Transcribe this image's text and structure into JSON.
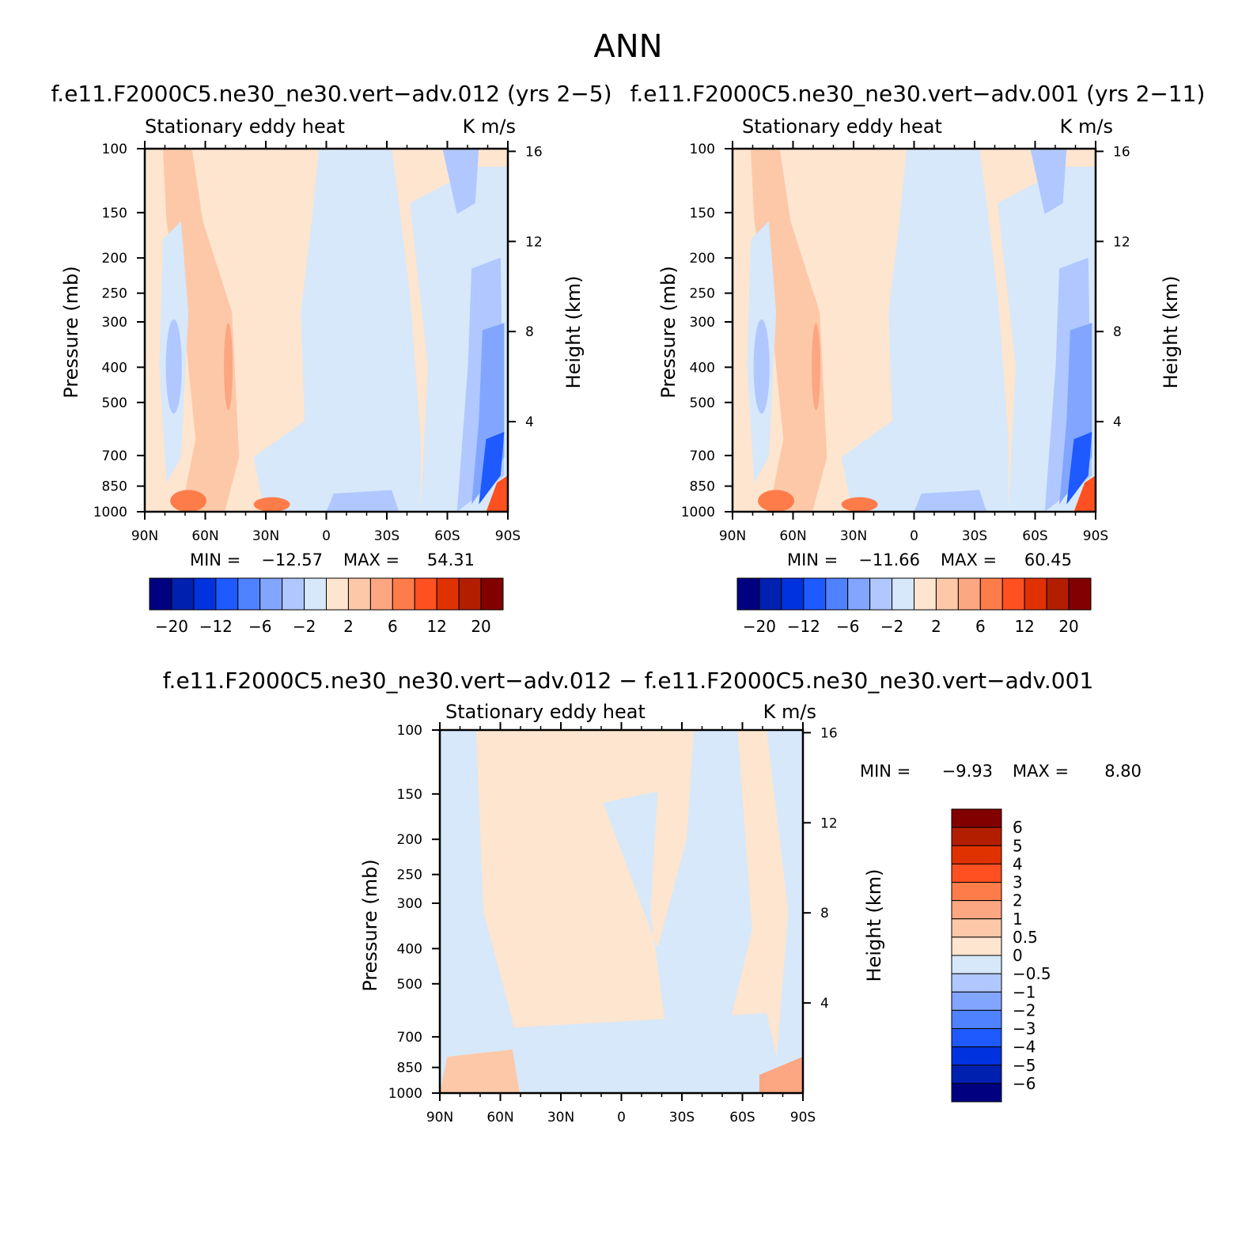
{
  "figure": {
    "title": "ANN"
  },
  "chart_data": [
    {
      "type": "heatmap",
      "case_title": "f.e11.F2000C5.ne30_ne30.vert−adv.012 (yrs 2−5)",
      "left_string": "Stationary eddy heat",
      "right_string": "K m/s",
      "xlabel": "",
      "ylabel": "Pressure (mb)",
      "y2label": "Height (km)",
      "x_ticks": [
        "90N",
        "60N",
        "30N",
        "0",
        "30S",
        "60S",
        "90S"
      ],
      "y_ticks": [
        100,
        150,
        200,
        250,
        300,
        400,
        500,
        700,
        850,
        1000
      ],
      "y2_ticks": [
        16,
        12,
        8,
        4
      ],
      "ylim": [
        1000,
        100
      ],
      "y_scale": "log",
      "min_label": "MIN =",
      "min_value": "−12.57",
      "max_label": "MAX =",
      "max_value": "54.31",
      "colorbar": {
        "orientation": "horizontal",
        "labels": [
          "−20",
          "−12",
          "−6",
          "−2",
          "2",
          "6",
          "12",
          "20"
        ]
      }
    },
    {
      "type": "heatmap",
      "case_title": "f.e11.F2000C5.ne30_ne30.vert−adv.001 (yrs 2−11)",
      "left_string": "Stationary eddy heat",
      "right_string": "K m/s",
      "xlabel": "",
      "ylabel": "Pressure (mb)",
      "y2label": "Height (km)",
      "x_ticks": [
        "90N",
        "60N",
        "30N",
        "0",
        "30S",
        "60S",
        "90S"
      ],
      "y_ticks": [
        100,
        150,
        200,
        250,
        300,
        400,
        500,
        700,
        850,
        1000
      ],
      "y2_ticks": [
        16,
        12,
        8,
        4
      ],
      "ylim": [
        1000,
        100
      ],
      "y_scale": "log",
      "min_label": "MIN =",
      "min_value": "−11.66",
      "max_label": "MAX =",
      "max_value": "60.45",
      "colorbar": {
        "orientation": "horizontal",
        "labels": [
          "−20",
          "−12",
          "−6",
          "−2",
          "2",
          "6",
          "12",
          "20"
        ]
      }
    },
    {
      "type": "heatmap",
      "case_title": "f.e11.F2000C5.ne30_ne30.vert−adv.012 − f.e11.F2000C5.ne30_ne30.vert−adv.001",
      "left_string": "Stationary eddy heat",
      "right_string": "K m/s",
      "xlabel": "",
      "ylabel": "Pressure (mb)",
      "y2label": "Height (km)",
      "x_ticks": [
        "90N",
        "60N",
        "30N",
        "0",
        "30S",
        "60S",
        "90S"
      ],
      "y_ticks": [
        100,
        150,
        200,
        250,
        300,
        400,
        500,
        700,
        850,
        1000
      ],
      "y2_ticks": [
        16,
        12,
        8,
        4
      ],
      "ylim": [
        1000,
        100
      ],
      "y_scale": "log",
      "min_label": "MIN =",
      "min_value": "−9.93",
      "max_label": "MAX =",
      "max_value": "8.80",
      "colorbar": {
        "orientation": "vertical",
        "labels": [
          "6",
          "5",
          "4",
          "3",
          "2",
          "1",
          "0.5",
          "0",
          "−0.5",
          "−1",
          "−2",
          "−3",
          "−4",
          "−5",
          "−6"
        ]
      }
    }
  ],
  "palette": [
    "#000080",
    "#0020b0",
    "#0032e0",
    "#1e5aff",
    "#4e82ff",
    "#82a6ff",
    "#b0c8ff",
    "#d6e8fa",
    "#fde5cf",
    "#fdc8a8",
    "#fca682",
    "#fe7c4a",
    "#fe5020",
    "#e03200",
    "#b41e00",
    "#820000"
  ]
}
